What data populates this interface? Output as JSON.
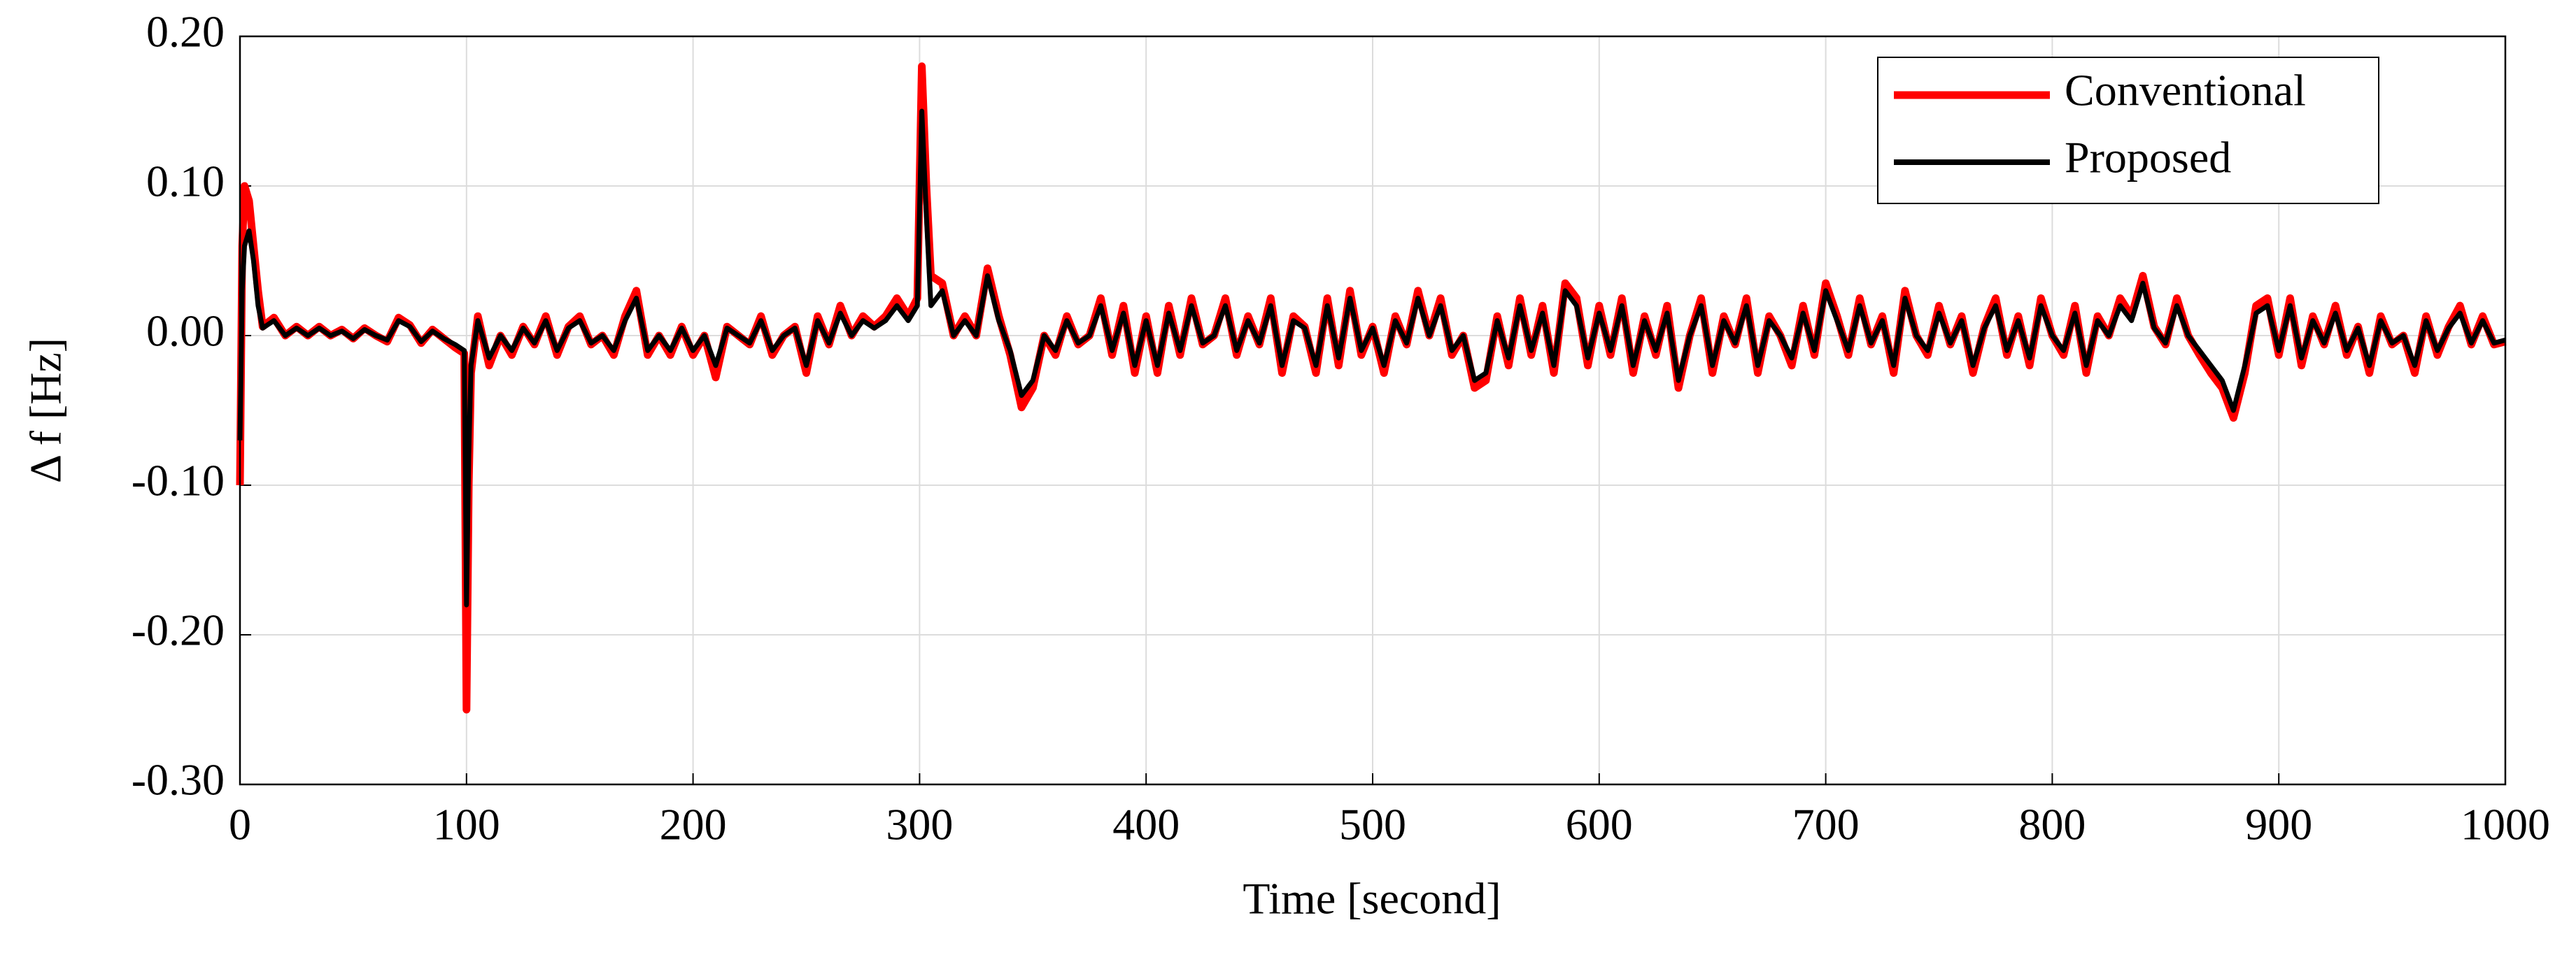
{
  "chart_data": {
    "type": "line",
    "xlabel": "Time [second]",
    "ylabel": "Δ f [Hz]",
    "x": [
      0,
      1,
      2,
      4,
      6,
      8,
      10,
      15,
      20,
      25,
      30,
      35,
      40,
      45,
      50,
      55,
      60,
      65,
      70,
      75,
      80,
      85,
      90,
      95,
      99,
      100,
      101,
      102,
      105,
      110,
      115,
      120,
      125,
      130,
      135,
      140,
      145,
      150,
      155,
      160,
      165,
      170,
      175,
      180,
      185,
      190,
      195,
      200,
      205,
      210,
      215,
      220,
      225,
      230,
      235,
      240,
      245,
      250,
      255,
      260,
      265,
      270,
      275,
      280,
      285,
      290,
      295,
      299,
      301,
      303,
      305,
      310,
      315,
      320,
      325,
      330,
      335,
      340,
      345,
      350,
      355,
      360,
      365,
      370,
      375,
      380,
      385,
      390,
      395,
      400,
      405,
      410,
      415,
      420,
      425,
      430,
      435,
      440,
      445,
      450,
      455,
      460,
      465,
      470,
      475,
      480,
      485,
      490,
      495,
      500,
      505,
      510,
      515,
      520,
      525,
      530,
      535,
      540,
      545,
      550,
      555,
      560,
      565,
      570,
      575,
      580,
      585,
      590,
      595,
      600,
      605,
      610,
      615,
      620,
      625,
      630,
      635,
      640,
      645,
      650,
      655,
      660,
      665,
      670,
      675,
      680,
      685,
      690,
      695,
      700,
      705,
      710,
      715,
      720,
      725,
      730,
      735,
      740,
      745,
      750,
      755,
      760,
      765,
      770,
      775,
      780,
      785,
      790,
      795,
      800,
      805,
      810,
      815,
      820,
      825,
      830,
      835,
      840,
      845,
      850,
      855,
      860,
      865,
      870,
      875,
      880,
      885,
      890,
      895,
      900,
      905,
      910,
      915,
      920,
      925,
      930,
      935,
      940,
      945,
      950,
      955,
      960,
      965,
      970,
      975,
      980,
      985,
      990,
      995,
      1000
    ],
    "series": [
      {
        "name": "Conventional",
        "color": "#ff0000",
        "values": [
          -0.1,
          0.06,
          0.1,
          0.09,
          0.06,
          0.03,
          0.006,
          0.012,
          0,
          0.006,
          0,
          0.006,
          0,
          0.004,
          -0.002,
          0.005,
          0,
          -0.004,
          0.012,
          0.007,
          -0.005,
          0.004,
          -0.002,
          -0.008,
          -0.012,
          -0.25,
          -0.1,
          -0.025,
          0.013,
          -0.02,
          0,
          -0.013,
          0.006,
          -0.006,
          0.013,
          -0.013,
          0.006,
          0.013,
          -0.006,
          0,
          -0.013,
          0.013,
          0.03,
          -0.013,
          0,
          -0.013,
          0.006,
          -0.013,
          0,
          -0.028,
          0.006,
          0,
          -0.006,
          0.013,
          -0.013,
          0,
          0.006,
          -0.025,
          0.013,
          -0.006,
          0.02,
          0,
          0.013,
          0.006,
          0.013,
          0.025,
          0.013,
          0.025,
          0.18,
          0.1,
          0.04,
          0.035,
          0,
          0.013,
          0,
          0.045,
          0.013,
          -0.013,
          -0.048,
          -0.035,
          0,
          -0.013,
          0.013,
          -0.006,
          0,
          0.025,
          -0.013,
          0.02,
          -0.025,
          0.013,
          -0.025,
          0.02,
          -0.013,
          0.025,
          -0.006,
          0,
          0.025,
          -0.013,
          0.013,
          -0.006,
          0.025,
          -0.025,
          0.013,
          0.006,
          -0.025,
          0.025,
          -0.02,
          0.03,
          -0.013,
          0.006,
          -0.025,
          0.013,
          -0.006,
          0.03,
          0,
          0.025,
          -0.013,
          0,
          -0.035,
          -0.03,
          0.013,
          -0.02,
          0.025,
          -0.013,
          0.02,
          -0.025,
          0.035,
          0.025,
          -0.02,
          0.02,
          -0.013,
          0.025,
          -0.025,
          0.013,
          -0.013,
          0.02,
          -0.035,
          0,
          0.025,
          -0.025,
          0.013,
          -0.006,
          0.025,
          -0.025,
          0.013,
          0,
          -0.02,
          0.02,
          -0.013,
          0.035,
          0.013,
          -0.013,
          0.025,
          -0.006,
          0.013,
          -0.025,
          0.03,
          0,
          -0.013,
          0.02,
          -0.006,
          0.013,
          -0.025,
          0.006,
          0.025,
          -0.013,
          0.013,
          -0.02,
          0.025,
          0,
          -0.013,
          0.02,
          -0.025,
          0.013,
          0,
          0.025,
          0.013,
          0.04,
          0.006,
          -0.006,
          0.025,
          0,
          -0.013,
          -0.025,
          -0.035,
          -0.055,
          -0.025,
          0.02,
          0.025,
          -0.013,
          0.025,
          -0.02,
          0.013,
          -0.006,
          0.02,
          -0.013,
          0.006,
          -0.025,
          0.013,
          -0.006,
          0,
          -0.025,
          0.013,
          -0.013,
          0.006,
          0.02,
          -0.006,
          0.013,
          -0.006,
          -0.004
        ]
      },
      {
        "name": "Proposed",
        "color": "#000000",
        "values": [
          -0.07,
          0.03,
          0.06,
          0.07,
          0.05,
          0.02,
          0.005,
          0.01,
          0,
          0.005,
          0,
          0.005,
          0,
          0.003,
          -0.002,
          0.004,
          0,
          -0.003,
          0.01,
          0.006,
          -0.004,
          0.003,
          -0.002,
          -0.006,
          -0.01,
          -0.18,
          -0.08,
          -0.02,
          0.01,
          -0.015,
          0,
          -0.01,
          0.005,
          -0.005,
          0.01,
          -0.01,
          0.005,
          0.01,
          -0.005,
          0,
          -0.01,
          0.01,
          0.025,
          -0.01,
          0,
          -0.01,
          0.005,
          -0.01,
          0,
          -0.02,
          0.005,
          0,
          -0.005,
          0.01,
          -0.01,
          0,
          0.005,
          -0.02,
          0.01,
          -0.005,
          0.015,
          0,
          0.01,
          0.005,
          0.01,
          0.02,
          0.01,
          0.02,
          0.15,
          0.08,
          0.02,
          0.03,
          0,
          0.01,
          0,
          0.04,
          0.01,
          -0.01,
          -0.04,
          -0.03,
          0,
          -0.01,
          0.01,
          -0.005,
          0,
          0.02,
          -0.01,
          0.015,
          -0.02,
          0.01,
          -0.02,
          0.015,
          -0.01,
          0.02,
          -0.005,
          0,
          0.02,
          -0.01,
          0.01,
          -0.005,
          0.02,
          -0.02,
          0.01,
          0.005,
          -0.02,
          0.02,
          -0.015,
          0.025,
          -0.01,
          0.005,
          -0.02,
          0.01,
          -0.005,
          0.025,
          0,
          0.02,
          -0.01,
          0,
          -0.03,
          -0.025,
          0.01,
          -0.015,
          0.02,
          -0.01,
          0.015,
          -0.02,
          0.03,
          0.02,
          -0.015,
          0.015,
          -0.01,
          0.02,
          -0.02,
          0.01,
          -0.01,
          0.015,
          -0.03,
          0,
          0.02,
          -0.02,
          0.01,
          -0.005,
          0.02,
          -0.02,
          0.01,
          0,
          -0.015,
          0.015,
          -0.01,
          0.03,
          0.01,
          -0.01,
          0.02,
          -0.005,
          0.01,
          -0.02,
          0.025,
          0,
          -0.01,
          0.015,
          -0.005,
          0.01,
          -0.02,
          0.005,
          0.02,
          -0.01,
          0.01,
          -0.015,
          0.02,
          0,
          -0.01,
          0.015,
          -0.02,
          0.01,
          0,
          0.02,
          0.01,
          0.035,
          0.005,
          -0.005,
          0.02,
          0,
          -0.01,
          -0.02,
          -0.03,
          -0.05,
          -0.02,
          0.015,
          0.02,
          -0.01,
          0.02,
          -0.015,
          0.01,
          -0.005,
          0.015,
          -0.01,
          0.005,
          -0.02,
          0.01,
          -0.005,
          0,
          -0.02,
          0.01,
          -0.01,
          0.005,
          0.015,
          -0.005,
          0.01,
          -0.005,
          -0.003
        ]
      }
    ],
    "xlim": [
      0,
      1000
    ],
    "xticks": [
      0,
      100,
      200,
      300,
      400,
      500,
      600,
      700,
      800,
      900,
      1000
    ],
    "ylim": [
      -0.3,
      0.2
    ],
    "yticks": [
      {
        "value": -0.3,
        "label": "-0.30"
      },
      {
        "value": -0.2,
        "label": "-0.20"
      },
      {
        "value": -0.1,
        "label": "-0.10"
      },
      {
        "value": 0,
        "label": "0.00"
      },
      {
        "value": 0.1,
        "label": "0.10"
      },
      {
        "value": 0.2,
        "label": "0.20"
      }
    ],
    "grid": true,
    "legend": "upper right"
  }
}
